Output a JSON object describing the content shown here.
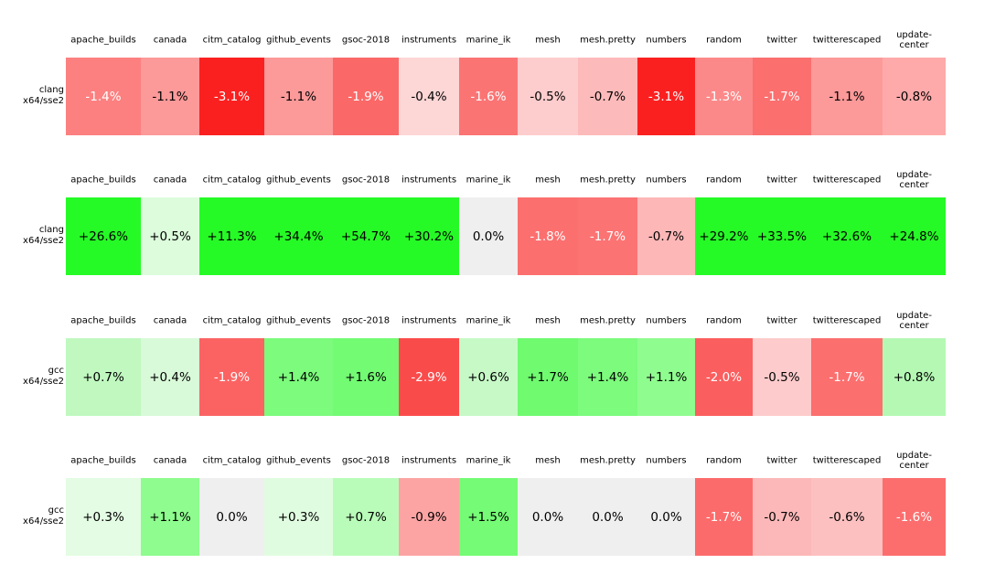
{
  "chart_data": {
    "type": "heatmap",
    "columns": [
      "apache_builds",
      "canada",
      "citm_catalog",
      "github_events",
      "gsoc-2018",
      "instruments",
      "marine_ik",
      "mesh",
      "mesh.pretty",
      "numbers",
      "random",
      "twitter",
      "twitterescaped",
      "update-center"
    ],
    "columns_display": [
      "apache_builds",
      "canada",
      "citm_catalog",
      "github_events",
      "gsoc-2018",
      "instruments",
      "marine_ik",
      "mesh",
      "mesh.pretty",
      "numbers",
      "random",
      "twitter",
      "twitterescaped",
      "update-\ncenter"
    ],
    "rows": [
      {
        "label": "clang",
        "sublabel": "x64/sse2",
        "cells": [
          {
            "v": -1.4,
            "d": "-1.4%",
            "bg": "#fc8080",
            "fg": "#ffffff"
          },
          {
            "v": -1.1,
            "d": "-1.1%",
            "bg": "#fc9999",
            "fg": "#000000"
          },
          {
            "v": -3.1,
            "d": "-3.1%",
            "bg": "#fb2020",
            "fg": "#ffffff"
          },
          {
            "v": -1.1,
            "d": "-1.1%",
            "bg": "#fc9999",
            "fg": "#000000"
          },
          {
            "v": -1.9,
            "d": "-1.9%",
            "bg": "#fb6868",
            "fg": "#ffffff"
          },
          {
            "v": -0.4,
            "d": "-0.4%",
            "bg": "#fdd6d6",
            "fg": "#000000"
          },
          {
            "v": -1.6,
            "d": "-1.6%",
            "bg": "#fb7474",
            "fg": "#ffffff"
          },
          {
            "v": -0.5,
            "d": "-0.5%",
            "bg": "#fdcccc",
            "fg": "#000000"
          },
          {
            "v": -0.7,
            "d": "-0.7%",
            "bg": "#fdbaba",
            "fg": "#000000"
          },
          {
            "v": -3.1,
            "d": "-3.1%",
            "bg": "#fb2020",
            "fg": "#ffffff"
          },
          {
            "v": -1.3,
            "d": "-1.3%",
            "bg": "#fc8989",
            "fg": "#ffffff"
          },
          {
            "v": -1.7,
            "d": "-1.7%",
            "bg": "#fb6f6f",
            "fg": "#ffffff"
          },
          {
            "v": -1.1,
            "d": "-1.1%",
            "bg": "#fc9999",
            "fg": "#000000"
          },
          {
            "v": -0.8,
            "d": "-0.8%",
            "bg": "#feaaaa",
            "fg": "#000000"
          }
        ]
      },
      {
        "label": "clang",
        "sublabel": "x64/sse2",
        "cells": [
          {
            "v": 26.6,
            "d": "+26.6%",
            "bg": "#26fa26",
            "fg": "#000000"
          },
          {
            "v": 0.5,
            "d": "+0.5%",
            "bg": "#dcfcdc",
            "fg": "#000000"
          },
          {
            "v": 11.3,
            "d": "+11.3%",
            "bg": "#26fa26",
            "fg": "#000000"
          },
          {
            "v": 34.4,
            "d": "+34.4%",
            "bg": "#26fa26",
            "fg": "#000000"
          },
          {
            "v": 54.7,
            "d": "+54.7%",
            "bg": "#26fa26",
            "fg": "#000000"
          },
          {
            "v": 30.2,
            "d": "+30.2%",
            "bg": "#26fa26",
            "fg": "#000000"
          },
          {
            "v": 0.0,
            "d": "0.0%",
            "bg": "#f0efef",
            "fg": "#000000"
          },
          {
            "v": -1.8,
            "d": "-1.8%",
            "bg": "#fc6f6f",
            "fg": "#ffffff"
          },
          {
            "v": -1.7,
            "d": "-1.7%",
            "bg": "#fc7373",
            "fg": "#ffffff"
          },
          {
            "v": -0.7,
            "d": "-0.7%",
            "bg": "#fdb7b7",
            "fg": "#000000"
          },
          {
            "v": 29.2,
            "d": "+29.2%",
            "bg": "#26fa26",
            "fg": "#000000"
          },
          {
            "v": 33.5,
            "d": "+33.5%",
            "bg": "#26fa26",
            "fg": "#000000"
          },
          {
            "v": 32.6,
            "d": "+32.6%",
            "bg": "#26fa26",
            "fg": "#000000"
          },
          {
            "v": 24.8,
            "d": "+24.8%",
            "bg": "#26fa26",
            "fg": "#000000"
          }
        ]
      },
      {
        "label": "gcc",
        "sublabel": "x64/sse2",
        "cells": [
          {
            "v": 0.7,
            "d": "+0.7%",
            "bg": "#c0f8c0",
            "fg": "#000000"
          },
          {
            "v": 0.4,
            "d": "+0.4%",
            "bg": "#d8fad8",
            "fg": "#000000"
          },
          {
            "v": -1.9,
            "d": "-1.9%",
            "bg": "#fb6363",
            "fg": "#ffffff"
          },
          {
            "v": 1.4,
            "d": "+1.4%",
            "bg": "#7cfb7c",
            "fg": "#000000"
          },
          {
            "v": 1.6,
            "d": "+1.6%",
            "bg": "#73fb73",
            "fg": "#000000"
          },
          {
            "v": -2.9,
            "d": "-2.9%",
            "bg": "#fa4b4b",
            "fg": "#ffffff"
          },
          {
            "v": 0.6,
            "d": "+0.6%",
            "bg": "#c7f9c7",
            "fg": "#000000"
          },
          {
            "v": 1.7,
            "d": "+1.7%",
            "bg": "#6ffa6f",
            "fg": "#000000"
          },
          {
            "v": 1.4,
            "d": "+1.4%",
            "bg": "#7cfb7c",
            "fg": "#000000"
          },
          {
            "v": 1.1,
            "d": "+1.1%",
            "bg": "#8ffc8f",
            "fg": "#000000"
          },
          {
            "v": -2.0,
            "d": "-2.0%",
            "bg": "#fb5e5e",
            "fg": "#ffffff"
          },
          {
            "v": -0.5,
            "d": "-0.5%",
            "bg": "#fdcbcb",
            "fg": "#000000"
          },
          {
            "v": -1.7,
            "d": "-1.7%",
            "bg": "#fb6f6f",
            "fg": "#ffffff"
          },
          {
            "v": 0.8,
            "d": "+0.8%",
            "bg": "#b4f8b4",
            "fg": "#000000"
          }
        ]
      },
      {
        "label": "gcc",
        "sublabel": "x64/sse2",
        "cells": [
          {
            "v": 0.3,
            "d": "+0.3%",
            "bg": "#e3fce3",
            "fg": "#000000"
          },
          {
            "v": 1.1,
            "d": "+1.1%",
            "bg": "#8efc8e",
            "fg": "#000000"
          },
          {
            "v": 0.0,
            "d": "0.0%",
            "bg": "#efefef",
            "fg": "#000000"
          },
          {
            "v": 0.3,
            "d": "+0.3%",
            "bg": "#e0fce0",
            "fg": "#000000"
          },
          {
            "v": 0.7,
            "d": "+0.7%",
            "bg": "#b9fcb9",
            "fg": "#000000"
          },
          {
            "v": -0.9,
            "d": "-0.9%",
            "bg": "#fca4a4",
            "fg": "#000000"
          },
          {
            "v": 1.5,
            "d": "+1.5%",
            "bg": "#75fb75",
            "fg": "#000000"
          },
          {
            "v": 0.0,
            "d": "0.0%",
            "bg": "#efefef",
            "fg": "#000000"
          },
          {
            "v": 0.0,
            "d": "0.0%",
            "bg": "#efefef",
            "fg": "#000000"
          },
          {
            "v": 0.0,
            "d": "0.0%",
            "bg": "#efefef",
            "fg": "#000000"
          },
          {
            "v": -1.7,
            "d": "-1.7%",
            "bg": "#fc6b6b",
            "fg": "#ffffff"
          },
          {
            "v": -0.7,
            "d": "-0.7%",
            "bg": "#fcb8b8",
            "fg": "#000000"
          },
          {
            "v": -0.6,
            "d": "-0.6%",
            "bg": "#fcc0c0",
            "fg": "#000000"
          },
          {
            "v": -1.6,
            "d": "-1.6%",
            "bg": "#fc6e6e",
            "fg": "#ffffff"
          }
        ]
      }
    ]
  }
}
